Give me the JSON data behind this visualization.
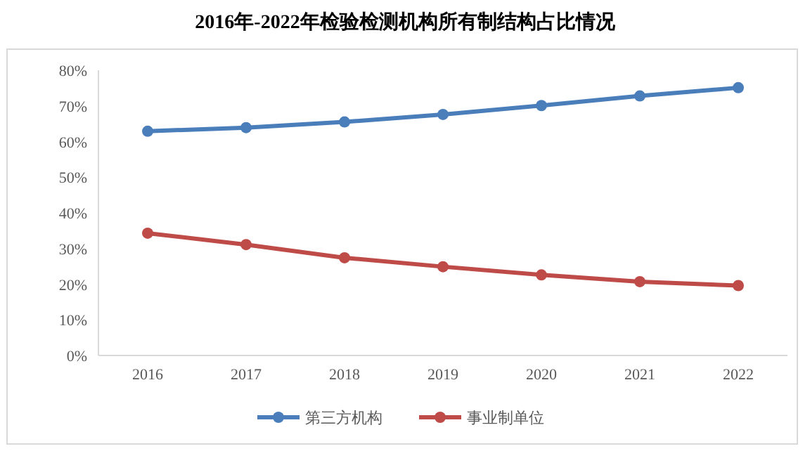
{
  "chart_data": {
    "type": "line",
    "title": "2016年-2022年检验检测机构所有制结构占比情况",
    "categories": [
      "2016",
      "2017",
      "2018",
      "2019",
      "2020",
      "2021",
      "2022"
    ],
    "series": [
      {
        "name": "第三方机构",
        "color": "#4a7ebb",
        "values": [
          62.9,
          63.9,
          65.5,
          67.6,
          70.1,
          72.8,
          75.1
        ]
      },
      {
        "name": "事业制单位",
        "color": "#be4b48",
        "values": [
          34.3,
          31.1,
          27.4,
          24.9,
          22.6,
          20.7,
          19.6
        ]
      }
    ],
    "ylim": [
      0,
      80
    ],
    "yticks": [
      {
        "value": 0,
        "label": "0%"
      },
      {
        "value": 10,
        "label": "10%"
      },
      {
        "value": 20,
        "label": "20%"
      },
      {
        "value": 30,
        "label": "30%"
      },
      {
        "value": 40,
        "label": "40%"
      },
      {
        "value": 50,
        "label": "50%"
      },
      {
        "value": 60,
        "label": "60%"
      },
      {
        "value": 70,
        "label": "70%"
      },
      {
        "value": 80,
        "label": "80%"
      }
    ],
    "grid": false,
    "legend": "bottom",
    "marker": "circle",
    "line_style": "solid"
  }
}
